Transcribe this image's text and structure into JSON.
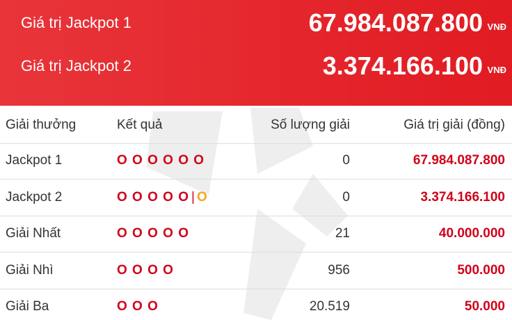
{
  "header": {
    "jackpots": [
      {
        "label": "Giá trị Jackpot 1",
        "value": "67.984.087.800",
        "unit": "VNĐ"
      },
      {
        "label": "Giá trị Jackpot 2",
        "value": "3.374.166.100",
        "unit": "VNĐ"
      }
    ]
  },
  "table": {
    "columns": [
      "Giải thưởng",
      "Kết quả",
      "Số lượng giải",
      "Giá trị giải (đồng)"
    ],
    "rows": [
      {
        "prize": "Jackpot 1",
        "result": "O O O O O O",
        "count": "0",
        "value": "67.984.087.800"
      },
      {
        "prize": "Jackpot 2",
        "result": "O O O O O",
        "separator": "|",
        "extra": "O",
        "count": "0",
        "value": "3.374.166.100"
      },
      {
        "prize": "Giải Nhất",
        "result": "O O O O O",
        "count": "21",
        "value": "40.000.000"
      },
      {
        "prize": "Giải Nhì",
        "result": "O O O O",
        "count": "956",
        "value": "500.000"
      },
      {
        "prize": "Giải Ba",
        "result": "O O O",
        "count": "20.519",
        "value": "50.000"
      }
    ]
  }
}
